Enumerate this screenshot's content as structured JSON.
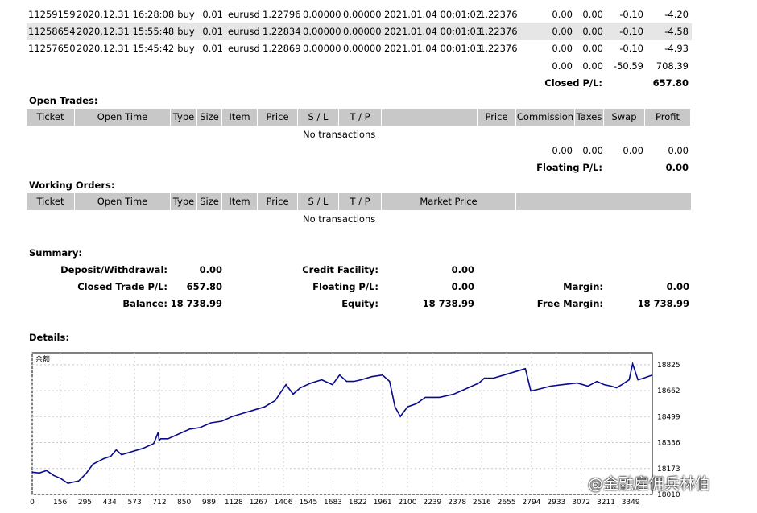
{
  "closed_rows": [
    {
      "ticket": "11259159",
      "open_time": "2020.12.31 16:28:08",
      "type": "buy",
      "size": "0.01",
      "item": "eurusd",
      "price": "1.22796",
      "sl": "0.00000",
      "tp": "0.00000",
      "close_time": "2021.01.04 00:01:02",
      "close_price": "1.22376",
      "commission": "0.00",
      "taxes": "0.00",
      "swap": "-0.10",
      "profit": "-4.20",
      "shade": false
    },
    {
      "ticket": "11258654",
      "open_time": "2020.12.31 15:55:48",
      "type": "buy",
      "size": "0.01",
      "item": "eurusd",
      "price": "1.22834",
      "sl": "0.00000",
      "tp": "0.00000",
      "close_time": "2021.01.04 00:01:03",
      "close_price": "1.22376",
      "commission": "0.00",
      "taxes": "0.00",
      "swap": "-0.10",
      "profit": "-4.58",
      "shade": true
    },
    {
      "ticket": "11257650",
      "open_time": "2020.12.31 15:45:42",
      "type": "buy",
      "size": "0.01",
      "item": "eurusd",
      "price": "1.22869",
      "sl": "0.00000",
      "tp": "0.00000",
      "close_time": "2021.01.04 00:01:03",
      "close_price": "1.22376",
      "commission": "0.00",
      "taxes": "0.00",
      "swap": "-0.10",
      "profit": "-4.93",
      "shade": false
    }
  ],
  "closed_totals": {
    "commission": "0.00",
    "taxes": "0.00",
    "swap": "-50.59",
    "profit": "708.39"
  },
  "closed_pl": {
    "label": "Closed P/L:",
    "value": "657.80"
  },
  "open_trades": {
    "title": "Open Trades:",
    "headers": [
      "Ticket",
      "Open Time",
      "Type",
      "Size",
      "Item",
      "Price",
      "S / L",
      "T / P",
      "",
      "Price",
      "Commission",
      "Taxes",
      "Swap",
      "Profit"
    ],
    "empty": "No transactions",
    "totals": {
      "commission": "0.00",
      "taxes": "0.00",
      "swap": "0.00",
      "profit": "0.00"
    },
    "floating_label": "Floating P/L:",
    "floating_value": "0.00"
  },
  "working_orders": {
    "title": "Working Orders:",
    "headers": [
      "Ticket",
      "Open Time",
      "Type",
      "Size",
      "Item",
      "Price",
      "S / L",
      "T / P",
      "Market Price",
      ""
    ],
    "empty": "No transactions"
  },
  "summary": {
    "title": "Summary:",
    "deposit_label": "Deposit/Withdrawal:",
    "deposit_value": "0.00",
    "credit_label": "Credit Facility:",
    "credit_value": "0.00",
    "closed_label": "Closed Trade P/L:",
    "closed_value": "657.80",
    "floating_label": "Floating P/L:",
    "floating_value": "0.00",
    "margin_label": "Margin:",
    "margin_value": "0.00",
    "balance_label": "Balance:",
    "balance_value": "18 738.99",
    "equity_label": "Equity:",
    "equity_value": "18 738.99",
    "free_margin_label": "Free Margin:",
    "free_margin_value": "18 738.99"
  },
  "details_title": "Details:",
  "watermark": "@金融雇佣兵林伯",
  "colors": {
    "header_bg": "#c8c8c8",
    "row_shade": "#e6e6e6",
    "line": "#0a0a8c"
  },
  "chart_data": {
    "type": "line",
    "title": "余额",
    "x_ticks": [
      "0",
      "156",
      "295",
      "434",
      "573",
      "712",
      "850",
      "989",
      "1128",
      "1267",
      "1406",
      "1545",
      "1683",
      "1822",
      "1961",
      "2100",
      "2239",
      "2378",
      "2516",
      "2655",
      "2794",
      "2933",
      "3072",
      "3211",
      "3349"
    ],
    "y_ticks": [
      "18825",
      "18662",
      "18499",
      "18336",
      "18173",
      "18010"
    ],
    "ylim": [
      18010,
      18900
    ],
    "xlim": [
      0,
      3470
    ],
    "series": [
      {
        "x": [
          0,
          40,
          80,
          120,
          160,
          200,
          260,
          300,
          340,
          400,
          440,
          470,
          500,
          560,
          620,
          680,
          705,
          710,
          720,
          760,
          820,
          880,
          940,
          1000,
          1060,
          1120,
          1180,
          1240,
          1300,
          1360,
          1390,
          1420,
          1460,
          1500,
          1560,
          1620,
          1680,
          1720,
          1760,
          1800,
          1840,
          1900,
          1960,
          2000,
          2030,
          2060,
          2100,
          2150,
          2200,
          2280,
          2360,
          2440,
          2500,
          2530,
          2580,
          2640,
          2700,
          2760,
          2790,
          2830,
          2900,
          2970,
          3050,
          3110,
          3160,
          3200,
          3240,
          3270,
          3300,
          3340,
          3360,
          3390,
          3420,
          3470
        ],
        "y": [
          18150,
          18145,
          18160,
          18130,
          18110,
          18080,
          18095,
          18140,
          18200,
          18235,
          18250,
          18290,
          18260,
          18280,
          18300,
          18330,
          18400,
          18350,
          18360,
          18360,
          18390,
          18420,
          18430,
          18460,
          18470,
          18500,
          18520,
          18540,
          18560,
          18600,
          18650,
          18700,
          18640,
          18680,
          18710,
          18730,
          18700,
          18760,
          18720,
          18720,
          18730,
          18750,
          18760,
          18720,
          18560,
          18500,
          18560,
          18580,
          18620,
          18620,
          18640,
          18680,
          18710,
          18740,
          18740,
          18760,
          18780,
          18800,
          18660,
          18670,
          18690,
          18700,
          18710,
          18690,
          18720,
          18700,
          18690,
          18680,
          18700,
          18730,
          18830,
          18730,
          18740,
          18760
        ]
      }
    ]
  }
}
